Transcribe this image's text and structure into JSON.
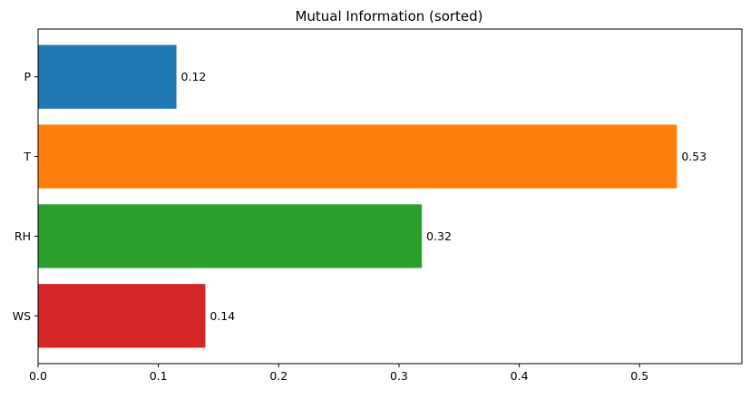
{
  "chart_data": {
    "type": "bar",
    "orientation": "horizontal",
    "title": "Mutual Information (sorted)",
    "xlabel": "",
    "ylabel": "",
    "categories": [
      "P",
      "T",
      "RH",
      "WS"
    ],
    "values": [
      0.115,
      0.531,
      0.319,
      0.139
    ],
    "value_labels": [
      "0.12",
      "0.53",
      "0.32",
      "0.14"
    ],
    "colors": [
      "#1f77b4",
      "#ff7f0e",
      "#2ca02c",
      "#d62728"
    ],
    "xlim": [
      0,
      0.585
    ],
    "xticks": [
      0.0,
      0.1,
      0.2,
      0.3,
      0.4,
      0.5
    ],
    "xtick_labels": [
      "0.0",
      "0.1",
      "0.2",
      "0.3",
      "0.4",
      "0.5"
    ],
    "grid": false,
    "legend": "none"
  }
}
